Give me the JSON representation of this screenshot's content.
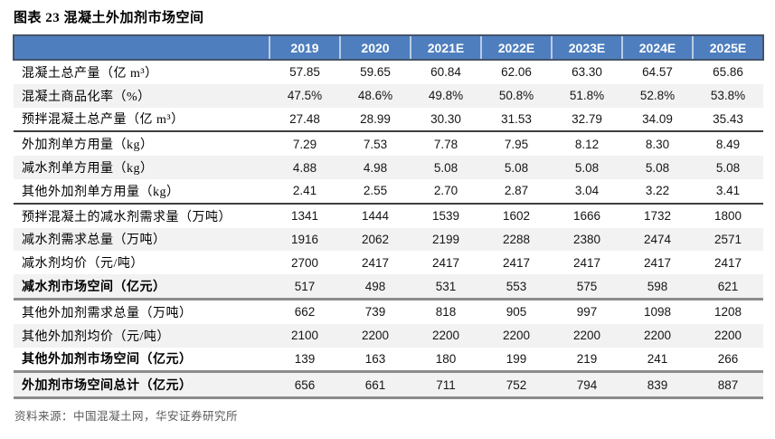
{
  "title": "图表 23 混凝土外加剂市场空间",
  "source": "资料来源：中国混凝土网，华安证券研究所",
  "colors": {
    "header_bg": "#4E7EBE",
    "header_border": "#44546A",
    "header_divider": "#B9CDE5",
    "row_stripe": "#F2F2F2",
    "section_line_dark": "#3F3F3F",
    "section_line_thick": "#8C8C8C",
    "source_text": "#595959"
  },
  "chart_data": {
    "type": "table",
    "columns": [
      "",
      "2019",
      "2020",
      "2021E",
      "2022E",
      "2023E",
      "2024E",
      "2025E"
    ],
    "rows": [
      {
        "label": "混凝土总产量（亿 m³）",
        "values": [
          "57.85",
          "59.65",
          "60.84",
          "62.06",
          "63.30",
          "64.57",
          "65.86"
        ],
        "shaded": false,
        "bold": false,
        "section": null
      },
      {
        "label": "混凝土商品化率（%）",
        "values": [
          "47.5%",
          "48.6%",
          "49.8%",
          "50.8%",
          "51.8%",
          "52.8%",
          "53.8%"
        ],
        "shaded": true,
        "bold": false,
        "section": null
      },
      {
        "label": "预拌混凝土总产量（亿 m³）",
        "values": [
          "27.48",
          "28.99",
          "30.30",
          "31.53",
          "32.79",
          "34.09",
          "35.43"
        ],
        "shaded": false,
        "bold": false,
        "section": null
      },
      {
        "label": "外加剂单方用量（kg）",
        "values": [
          "7.29",
          "7.53",
          "7.78",
          "7.95",
          "8.12",
          "8.30",
          "8.49"
        ],
        "shaded": false,
        "bold": false,
        "section": "thin"
      },
      {
        "label": "减水剂单方用量（kg）",
        "values": [
          "4.88",
          "4.98",
          "5.08",
          "5.08",
          "5.08",
          "5.08",
          "5.08"
        ],
        "shaded": true,
        "bold": false,
        "section": null
      },
      {
        "label": "其他外加剂单方用量（kg）",
        "values": [
          "2.41",
          "2.55",
          "2.70",
          "2.87",
          "3.04",
          "3.22",
          "3.41"
        ],
        "shaded": false,
        "bold": false,
        "section": null
      },
      {
        "label": "预拌混凝土的减水剂需求量（万吨）",
        "values": [
          "1341",
          "1444",
          "1539",
          "1602",
          "1666",
          "1732",
          "1800"
        ],
        "shaded": false,
        "bold": false,
        "section": "thin"
      },
      {
        "label": "减水剂需求总量（万吨）",
        "values": [
          "1916",
          "2062",
          "2199",
          "2288",
          "2380",
          "2474",
          "2571"
        ],
        "shaded": true,
        "bold": false,
        "section": null
      },
      {
        "label": "减水剂均价（元/吨）",
        "values": [
          "2700",
          "2417",
          "2417",
          "2417",
          "2417",
          "2417",
          "2417"
        ],
        "shaded": false,
        "bold": false,
        "section": null
      },
      {
        "label": "减水剂市场空间（亿元）",
        "values": [
          "517",
          "498",
          "531",
          "553",
          "575",
          "598",
          "621"
        ],
        "shaded": true,
        "bold": true,
        "section": null
      },
      {
        "label": "其他外加剂需求总量（万吨）",
        "values": [
          "662",
          "739",
          "818",
          "905",
          "997",
          "1098",
          "1208"
        ],
        "shaded": false,
        "bold": false,
        "section": "thick"
      },
      {
        "label": "其他外加剂均价（元/吨）",
        "values": [
          "2100",
          "2200",
          "2200",
          "2200",
          "2200",
          "2200",
          "2200"
        ],
        "shaded": true,
        "bold": false,
        "section": null
      },
      {
        "label": "其他外加剂市场空间（亿元）",
        "values": [
          "139",
          "163",
          "180",
          "199",
          "219",
          "241",
          "266"
        ],
        "shaded": false,
        "bold": true,
        "section": null
      },
      {
        "label": "外加剂市场空间总计（亿元）",
        "values": [
          "656",
          "661",
          "711",
          "752",
          "794",
          "839",
          "887"
        ],
        "shaded": true,
        "bold": true,
        "section": "thick"
      }
    ]
  }
}
